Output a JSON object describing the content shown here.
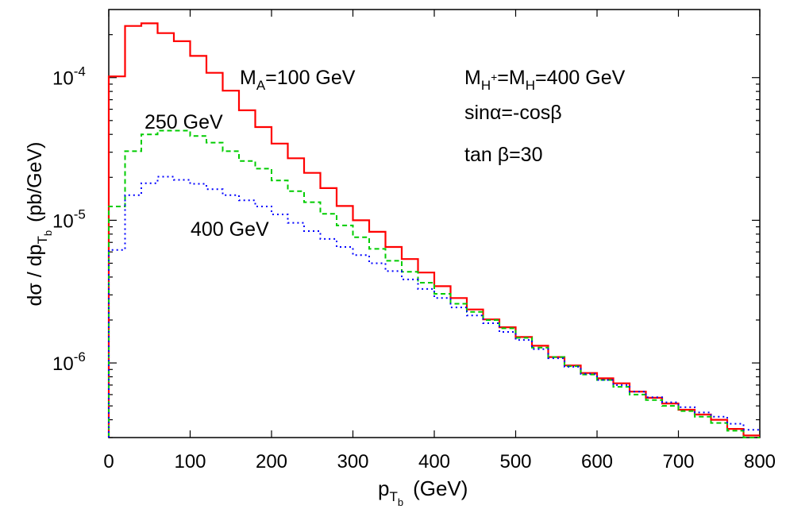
{
  "chart_data": {
    "type": "line",
    "style": "step-histogram",
    "xlabel": {
      "main": "p",
      "sub1": "T",
      "sub2": "b",
      "unit": "(GeV)"
    },
    "ylabel": {
      "pre": "dσ / dp",
      "sub1": "T",
      "sub2": "b",
      "unit": "(pb/GeV)"
    },
    "xlim": [
      0,
      800
    ],
    "ylim": [
      3e-07,
      0.0003
    ],
    "yscale": "log",
    "x_ticks": [
      0,
      100,
      200,
      300,
      400,
      500,
      600,
      700,
      800
    ],
    "x_tick_labels": [
      "0",
      "100",
      "200",
      "300",
      "400",
      "500",
      "600",
      "700",
      "800"
    ],
    "y_ticks": [
      {
        "value": 0.0001,
        "base": "10",
        "exp": "-4"
      },
      {
        "value": 1e-05,
        "base": "10",
        "exp": "-5"
      },
      {
        "value": 1e-06,
        "base": "10",
        "exp": "-6"
      }
    ],
    "bin_edges": [
      0,
      20,
      40,
      60,
      80,
      100,
      120,
      140,
      160,
      180,
      200,
      220,
      240,
      260,
      280,
      300,
      320,
      340,
      360,
      380,
      400,
      420,
      440,
      460,
      480,
      500,
      520,
      540,
      560,
      580,
      600,
      620,
      640,
      660,
      680,
      700,
      720,
      740,
      760,
      780,
      800
    ],
    "series": [
      {
        "color": "#ff0000",
        "dash": "solid",
        "values": [
          0.000102,
          0.00023,
          0.00024,
          0.000205,
          0.00018,
          0.000142,
          0.000108,
          8.1e-05,
          5.9e-05,
          4.5e-05,
          3.45e-05,
          2.72e-05,
          2.15e-05,
          1.68e-05,
          1.26e-05,
          1e-05,
          8.3e-06,
          6.5e-06,
          5.35e-06,
          4.3e-06,
          3.45e-06,
          2.85e-06,
          2.37e-06,
          2.02e-06,
          1.78e-06,
          1.52e-06,
          1.32e-06,
          1.1e-06,
          9.6e-07,
          8.5e-07,
          7.8e-07,
          7.2e-07,
          6.3e-07,
          5.7e-07,
          5.2e-07,
          4.7e-07,
          4.35e-07,
          4e-07,
          3.45e-07,
          3.1e-07
        ]
      },
      {
        "color": "#00cc00",
        "dash": "dashed",
        "values": [
          1.25e-05,
          3.05e-05,
          4e-05,
          4.25e-05,
          4.25e-05,
          3.9e-05,
          3.5e-05,
          3.05e-05,
          2.6e-05,
          2.3e-05,
          1.9e-05,
          1.6e-05,
          1.34e-05,
          1.11e-05,
          9.2e-06,
          7.6e-06,
          6.3e-06,
          5.2e-06,
          4.35e-06,
          3.65e-06,
          3.05e-06,
          2.6e-06,
          2.28e-06,
          2e-06,
          1.75e-06,
          1.5e-06,
          1.28e-06,
          1.1e-06,
          9.5e-07,
          8.3e-07,
          7.6e-07,
          6.8e-07,
          6e-07,
          5.5e-07,
          5e-07,
          4.6e-07,
          4.2e-07,
          3.8e-07,
          3.35e-07,
          3e-07
        ]
      },
      {
        "color": "#0000ff",
        "dash": "dotted",
        "values": [
          6.2e-06,
          1.5e-05,
          1.82e-05,
          2.02e-05,
          1.92e-05,
          1.8e-05,
          1.65e-05,
          1.5e-05,
          1.38e-05,
          1.25e-05,
          1.1e-05,
          9.6e-06,
          8.4e-06,
          7.4e-06,
          6.5e-06,
          5.7e-06,
          5e-06,
          4.4e-06,
          3.85e-06,
          3.3e-06,
          2.85e-06,
          2.45e-06,
          2.15e-06,
          1.9e-06,
          1.65e-06,
          1.45e-06,
          1.25e-06,
          1.08e-06,
          9.4e-07,
          8.4e-07,
          7.6e-07,
          7e-07,
          6.3e-07,
          5.75e-07,
          5.3e-07,
          4.9e-07,
          4.5e-07,
          4.2e-07,
          3.75e-07,
          3.4e-07
        ]
      }
    ],
    "annotations": [
      {
        "id": "ma",
        "main": "M",
        "sub": "A",
        "rest": "=100 GeV"
      },
      {
        "id": "ma250",
        "text": "250 GeV"
      },
      {
        "id": "ma400",
        "text": "400 GeV"
      },
      {
        "id": "mh",
        "main1": "M",
        "sub1": "H",
        "sup1": "+",
        "mid": "=M",
        "sub2": "H",
        "rest": "=400 GeV"
      },
      {
        "id": "sin",
        "text": "sinα=-cosβ"
      },
      {
        "id": "tan",
        "text": "tan β=30"
      }
    ],
    "grid": false,
    "legend": "none"
  }
}
